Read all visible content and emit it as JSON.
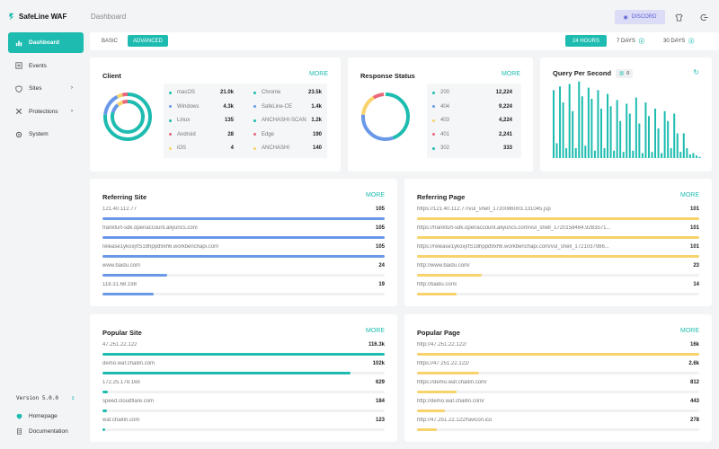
{
  "app": {
    "name": "SafeLine WAF",
    "version": "Version 5.0.0"
  },
  "sidebar": {
    "items": [
      {
        "label": "Dashboard",
        "icon": "chart-icon",
        "active": true
      },
      {
        "label": "Events",
        "icon": "list-icon"
      },
      {
        "label": "Sites",
        "icon": "shield-icon",
        "chevron": true
      },
      {
        "label": "Protections",
        "icon": "tools-icon",
        "chevron": true
      },
      {
        "label": "System",
        "icon": "gear-icon"
      }
    ],
    "footer": [
      {
        "label": "Homepage",
        "icon": "shield-icon"
      },
      {
        "label": "Documentation",
        "icon": "doc-icon"
      }
    ]
  },
  "header": {
    "title": "Dashboard",
    "discord": "DISCORD"
  },
  "filters": {
    "modes": [
      "BASIC",
      "ADVANCED"
    ],
    "active_mode": "ADVANCED",
    "ranges": [
      "24 HOURS",
      "7 DAYS",
      "30 DAYS"
    ],
    "active_range": "24 HOURS"
  },
  "colors": {
    "accent": "#1ebcb0",
    "blue": "#6a98e8",
    "yellow": "#f8d26a",
    "red": "#e9677a",
    "purple": "#5b5fd6"
  },
  "client": {
    "title": "Client",
    "more": "MORE",
    "left": [
      {
        "label": "macOS",
        "value": "21.0k",
        "color": "#1ebcb0"
      },
      {
        "label": "Windows",
        "value": "4.3k",
        "color": "#6a98e8"
      },
      {
        "label": "Linux",
        "value": "135",
        "color": "#1ebcb0"
      },
      {
        "label": "Android",
        "value": "28",
        "color": "#e9677a"
      },
      {
        "label": "iOS",
        "value": "4",
        "color": "#f8d26a"
      }
    ],
    "right": [
      {
        "label": "Chrome",
        "value": "23.5k",
        "color": "#1ebcb0"
      },
      {
        "label": "SafeLine-CE",
        "value": "1.4k",
        "color": "#6a98e8"
      },
      {
        "label": "ANCHASHI-SCAN",
        "value": "1.2k",
        "color": "#1ebcb0"
      },
      {
        "label": "Edge",
        "value": "190",
        "color": "#e9677a"
      },
      {
        "label": "ANCHASHI",
        "value": "140",
        "color": "#f8d26a"
      }
    ]
  },
  "response": {
    "title": "Response Status",
    "more": "MORE",
    "rows": [
      {
        "label": "200",
        "value": "12,224",
        "color": "#1ebcb0"
      },
      {
        "label": "404",
        "value": "9,224",
        "color": "#6a98e8"
      },
      {
        "label": "403",
        "value": "4,224",
        "color": "#f8d26a"
      },
      {
        "label": "401",
        "value": "2,241",
        "color": "#e9677a"
      },
      {
        "label": "302",
        "value": "333",
        "color": "#1ebcb0"
      }
    ]
  },
  "qps": {
    "title": "Query Per Second",
    "badge": "0"
  },
  "chart_data": {
    "type": "bar",
    "title": "Query Per Second",
    "values": [
      55,
      12,
      58,
      45,
      8,
      60,
      38,
      8,
      62,
      50,
      10,
      57,
      48,
      6,
      55,
      40,
      8,
      52,
      42,
      6,
      47,
      30,
      5,
      44,
      36,
      6,
      49,
      28,
      4,
      45,
      34,
      5,
      40,
      24,
      4,
      38,
      30,
      8,
      36,
      20,
      5,
      20,
      8,
      3,
      4,
      2,
      1
    ]
  },
  "referring_site": {
    "title": "Referring Site",
    "more": "MORE",
    "color": "#6a98e8",
    "rows": [
      {
        "label": "121.40.112.77",
        "value": "105",
        "pct": 1.0
      },
      {
        "label": "frankfurt-sdk.openaccount.aliyuncs.com",
        "value": "105",
        "pct": 1.0
      },
      {
        "label": "release1ykoxjrtS18hppd9xh6.workbenchapi.com",
        "value": "105",
        "pct": 1.0
      },
      {
        "label": "www.baidu.com",
        "value": "24",
        "pct": 0.23
      },
      {
        "label": "118.31.68.198",
        "value": "19",
        "pct": 0.18
      }
    ]
  },
  "referring_page": {
    "title": "Referring Page",
    "more": "MORE",
    "color": "#f8d26a",
    "rows": [
      {
        "label": "https://121.40.112.77/vul_shell_1720086003.131045.jsp",
        "value": "101",
        "pct": 1.0
      },
      {
        "label": "https://frankfurt-sdk.openaccount.aliyuncs.com/vul_shell_1720158464.9283571...",
        "value": "101",
        "pct": 1.0
      },
      {
        "label": "https://release1ykoxjrtS18hppd9xh6.workbenchapi.com/vul_shell_1721037986...",
        "value": "101",
        "pct": 1.0
      },
      {
        "label": "http://www.baidu.com/",
        "value": "23",
        "pct": 0.23
      },
      {
        "label": "http://baidu.com/",
        "value": "14",
        "pct": 0.14
      }
    ]
  },
  "popular_site": {
    "title": "Popular Site",
    "more": "MORE",
    "color": "#1ebcb0",
    "rows": [
      {
        "label": "47.251.22.122",
        "value": "116.3k",
        "pct": 1.0
      },
      {
        "label": "demo.waf.chaitin.com",
        "value": "102k",
        "pct": 0.88
      },
      {
        "label": "172.25.178.168",
        "value": "629",
        "pct": 0.02
      },
      {
        "label": "speed.cloudflare.com",
        "value": "184",
        "pct": 0.015
      },
      {
        "label": "waf.chaitin.com",
        "value": "123",
        "pct": 0.01
      }
    ]
  },
  "popular_page": {
    "title": "Popular Page",
    "more": "MORE",
    "color": "#f8d26a",
    "rows": [
      {
        "label": "http://47.251.22.122/",
        "value": "16k",
        "pct": 1.0
      },
      {
        "label": "https://47.251.22.122/",
        "value": "2.6k",
        "pct": 0.22
      },
      {
        "label": "https://demo.waf.chaitin.com/",
        "value": "812",
        "pct": 0.14
      },
      {
        "label": "http://demo.waf.chaitin.com/",
        "value": "443",
        "pct": 0.1
      },
      {
        "label": "http://47.251.22.122/favicon.ico",
        "value": "278",
        "pct": 0.07
      }
    ]
  }
}
